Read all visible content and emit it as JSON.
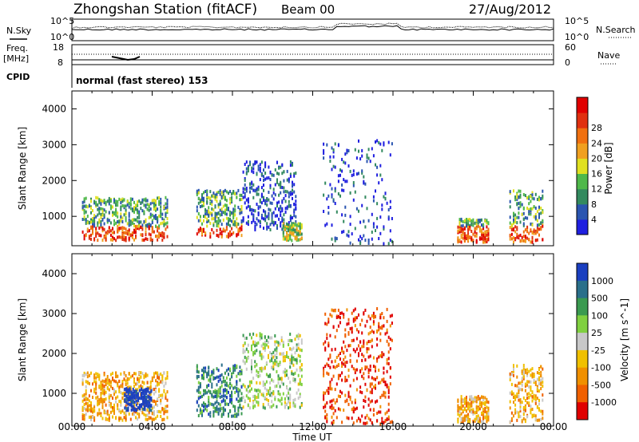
{
  "header": {
    "station": "Zhongshan Station (fitACF)",
    "beam": "Beam 00",
    "date": "27/Aug/2012"
  },
  "side_labels": {
    "nsky": "N.Sky",
    "nsearch": "N.Search",
    "freq": "Freq.",
    "freq_unit": "[MHz]",
    "nave": "Nave",
    "cpid": "CPID"
  },
  "strip_ticks": {
    "noise_left": [
      "10^5",
      "10^0"
    ],
    "noise_right": [
      "10^5",
      "10^0"
    ],
    "freq_left": [
      "18",
      "8"
    ],
    "nave_right": [
      "60",
      "0"
    ]
  },
  "cpid_text": "normal (fast stereo) 153",
  "x_axis": {
    "label": "Time UT",
    "ticks": [
      "00:00",
      "04:00",
      "08:00",
      "12:00",
      "16:00",
      "20:00",
      "00:00"
    ]
  },
  "chart_data": [
    {
      "type": "heatmap",
      "name": "power",
      "ylabel": "Slant Range [km]",
      "yticks": [
        1000,
        2000,
        3000,
        4000
      ],
      "ylim": [
        180,
        4500
      ],
      "xlim_hours": [
        0,
        24
      ],
      "colorbar": {
        "label": "Power [dB]",
        "ticks": [
          "4",
          "8",
          "12",
          "16",
          "20",
          "24",
          "28"
        ],
        "colors": [
          "#1f1fe0",
          "#2a55b0",
          "#338a5f",
          "#4fb84a",
          "#e0e020",
          "#f0a020",
          "#f07010",
          "#e03010",
          "#e00000"
        ]
      },
      "echo_regions": [
        {
          "t": [
            0.5,
            4.8
          ],
          "r": [
            300,
            1500
          ],
          "level": "high"
        },
        {
          "t": [
            6.2,
            8.5
          ],
          "r": [
            400,
            1700
          ],
          "level": "high"
        },
        {
          "t": [
            8.5,
            11.2
          ],
          "r": [
            600,
            2500
          ],
          "level": "low"
        },
        {
          "t": [
            10.5,
            11.5
          ],
          "r": [
            300,
            800
          ],
          "level": "medium"
        },
        {
          "t": [
            12.5,
            16.0
          ],
          "r": [
            200,
            3100
          ],
          "level": "sparse"
        },
        {
          "t": [
            19.2,
            20.8
          ],
          "r": [
            250,
            900
          ],
          "level": "high"
        },
        {
          "t": [
            21.8,
            23.5
          ],
          "r": [
            250,
            1700
          ],
          "level": "high"
        }
      ]
    },
    {
      "type": "heatmap",
      "name": "velocity",
      "ylabel": "Slant Range [km]",
      "yticks": [
        1000,
        2000,
        3000,
        4000
      ],
      "ylim": [
        180,
        4500
      ],
      "xlim_hours": [
        0,
        24
      ],
      "colorbar": {
        "label": "Velocity [m s^-1]",
        "ticks": [
          "1000",
          "500",
          "100",
          "25",
          "-25",
          "-100",
          "-500",
          "-1000"
        ],
        "colors": [
          "#1a3fc0",
          "#2a6f8a",
          "#3a9a50",
          "#80d040",
          "#c8c8c8",
          "#f0c000",
          "#f09000",
          "#f06000",
          "#e00000"
        ]
      },
      "echo_regions": [
        {
          "t": [
            0.5,
            4.8
          ],
          "r": [
            300,
            1500
          ],
          "dominant": "-100 to -500"
        },
        {
          "t": [
            2.6,
            4.0
          ],
          "r": [
            550,
            1100
          ],
          "dominant": "500 to 1000"
        },
        {
          "t": [
            6.2,
            8.5
          ],
          "r": [
            400,
            1700
          ],
          "dominant": "25 to 100"
        },
        {
          "t": [
            8.5,
            11.5
          ],
          "r": [
            600,
            2500
          ],
          "dominant": "-25 to 25"
        },
        {
          "t": [
            12.5,
            16.0
          ],
          "r": [
            200,
            3100
          ],
          "dominant": "-500 to -1000"
        },
        {
          "t": [
            19.2,
            20.8
          ],
          "r": [
            250,
            900
          ],
          "dominant": "-100 to -500"
        },
        {
          "t": [
            21.8,
            23.5
          ],
          "r": [
            250,
            1700
          ],
          "dominant": "-100 to -500"
        }
      ]
    }
  ]
}
